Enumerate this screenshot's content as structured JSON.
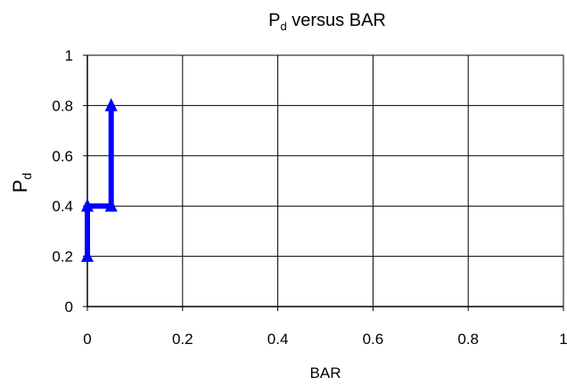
{
  "chart_data": {
    "type": "line",
    "title": {
      "main": "P",
      "sub": "d",
      "rest": " versus BAR"
    },
    "xlabel": "BAR",
    "ylabel": {
      "main": "P",
      "sub": "d"
    },
    "xlim": [
      0,
      1
    ],
    "ylim": [
      0,
      1
    ],
    "xticks": [
      0,
      0.2,
      0.4,
      0.6,
      0.8,
      1
    ],
    "yticks": [
      0,
      0.2,
      0.4,
      0.6,
      0.8,
      1
    ],
    "xtick_labels": [
      "0",
      "0.2",
      "0.4",
      "0.6",
      "0.8",
      "1"
    ],
    "ytick_labels": [
      "0",
      "0.2",
      "0.4",
      "0.6",
      "0.8",
      "1"
    ],
    "grid": true,
    "legend": false,
    "series": [
      {
        "color": "#0000ff",
        "marker": "triangle",
        "x": [
          0,
          0,
          0.05,
          0.05
        ],
        "y": [
          0.2,
          0.4,
          0.4,
          0.8
        ]
      }
    ]
  }
}
